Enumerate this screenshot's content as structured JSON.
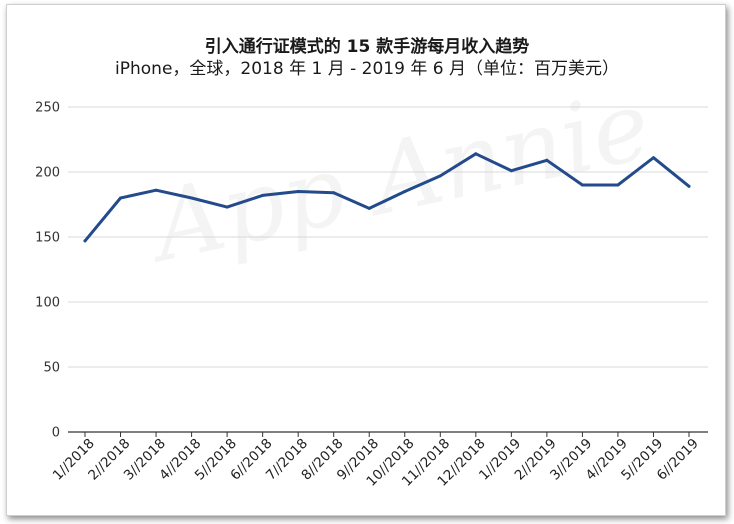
{
  "title": "引入通行证模式的 15 款手游每月收入趋势",
  "subtitle": "iPhone，全球，2018 年 1 月 - 2019 年 6 月（单位：百万美元）",
  "watermark": "App Annie",
  "colors": {
    "line": "#234b8c",
    "grid": "#d9d9d9",
    "axis": "#333333"
  },
  "chart_data": {
    "type": "line",
    "title": "引入通行证模式的 15 款手游每月收入趋势",
    "subtitle": "iPhone，全球，2018 年 1 月 - 2019 年 6 月（单位：百万美元）",
    "xlabel": "",
    "ylabel": "",
    "ylim": [
      0,
      250
    ],
    "yticks": [
      0,
      50,
      100,
      150,
      200,
      250
    ],
    "grid": true,
    "legend": "none",
    "categories": [
      "1//2018",
      "2//2018",
      "3//2018",
      "4//2018",
      "5//2018",
      "6//2018",
      "7//2018",
      "8//2018",
      "9//2018",
      "10//2018",
      "11//2018",
      "12//2018",
      "1//2019",
      "2//2019",
      "3//2019",
      "4//2019",
      "5//2019",
      "6//2019"
    ],
    "series": [
      {
        "values": [
          147,
          180,
          186,
          180,
          173,
          182,
          185,
          184,
          172,
          185,
          197,
          214,
          201,
          209,
          190,
          190,
          211,
          189
        ]
      }
    ]
  }
}
